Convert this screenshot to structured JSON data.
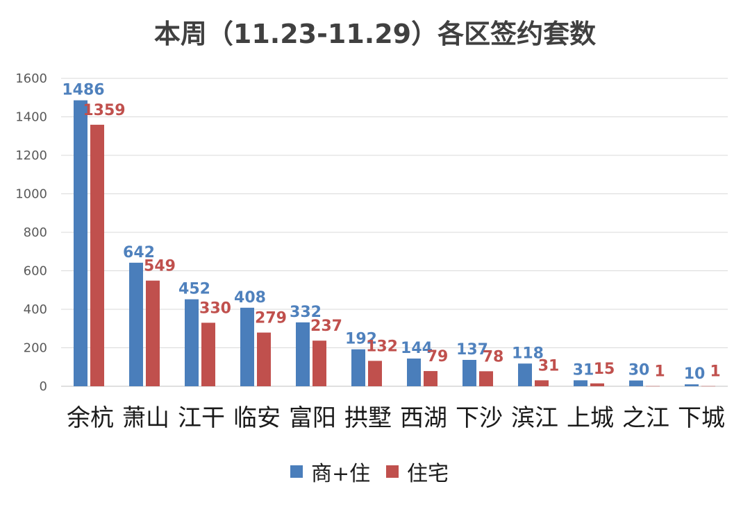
{
  "chart_data": {
    "type": "bar",
    "title": "本周（11.23-11.29）各区签约套数",
    "categories": [
      "余杭",
      "萧山",
      "江干",
      "临安",
      "富阳",
      "拱墅",
      "西湖",
      "下沙",
      "滨江",
      "上城",
      "之江",
      "下城"
    ],
    "series": [
      {
        "name": "商+住",
        "color": "#4a7ebb",
        "label_color": "#4f81bd",
        "values": [
          1486,
          642,
          452,
          408,
          332,
          192,
          144,
          137,
          118,
          31,
          30,
          10
        ],
        "labels": [
          "1486",
          "642",
          "452",
          "408",
          "332",
          "192",
          "144",
          "137",
          "118",
          "31",
          "30",
          "10"
        ]
      },
      {
        "name": "住宅",
        "color": "#c0504d",
        "label_color": "#c0504d",
        "values": [
          1359,
          549,
          330,
          279,
          237,
          132,
          79,
          78,
          31,
          15,
          1,
          1
        ],
        "labels": [
          "1359",
          "549",
          "330",
          "279",
          "237",
          "132",
          "79",
          "78",
          "31",
          "15",
          "1",
          "1"
        ]
      }
    ],
    "ylim": [
      0,
      1600
    ],
    "yticks": [
      0,
      200,
      400,
      600,
      800,
      1000,
      1200,
      1400,
      1600
    ],
    "grid": true,
    "legend_position": "bottom"
  }
}
